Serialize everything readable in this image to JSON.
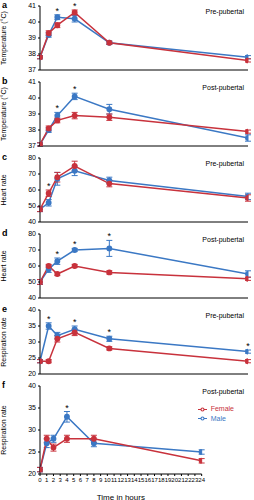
{
  "chart_data": [
    {
      "type": "line",
      "panel": "a",
      "title": "Pre-pubertal",
      "y_label": "Temperature (°C)",
      "x": [
        0,
        1,
        2,
        4,
        8,
        24
      ],
      "xlim": [
        0,
        24
      ],
      "xticks": [
        0,
        1,
        2,
        3,
        4,
        5,
        6,
        7,
        8,
        9,
        10,
        11,
        12,
        13,
        14,
        15,
        16,
        17,
        18,
        19,
        20,
        21,
        22,
        23,
        24
      ],
      "ylim": [
        37,
        41
      ],
      "yticks": [
        37,
        38,
        39,
        40,
        41
      ],
      "tick_labels": "y",
      "series": [
        {
          "name": "Male",
          "color": "#3b78c4",
          "marker": "circle",
          "values": [
            37.8,
            39.2,
            40.3,
            40.2,
            38.7,
            37.8
          ],
          "errors": [
            0.1,
            0.15,
            0.15,
            0.2,
            0.1,
            0.1
          ]
        },
        {
          "name": "Female",
          "color": "#c8323c",
          "marker": "circle",
          "values": [
            37.8,
            39.3,
            39.8,
            40.6,
            38.7,
            37.6
          ],
          "errors": [
            0.1,
            0.15,
            0.15,
            0.15,
            0.1,
            0.1
          ]
        }
      ],
      "annotations": [
        {
          "text": "*",
          "x": 2
        },
        {
          "text": "*",
          "x": 4
        }
      ]
    },
    {
      "type": "line",
      "panel": "b",
      "title": "Post-pubertal",
      "y_label": "Temperature (°C)",
      "x": [
        0,
        1,
        2,
        4,
        8,
        24
      ],
      "xlim": [
        0,
        24
      ],
      "xticks": [
        0,
        1,
        2,
        3,
        4,
        5,
        6,
        7,
        8,
        9,
        10,
        11,
        12,
        13,
        14,
        15,
        16,
        17,
        18,
        19,
        20,
        21,
        22,
        23,
        24
      ],
      "ylim": [
        37,
        41
      ],
      "yticks": [
        37,
        38,
        39,
        40,
        41
      ],
      "tick_labels": "y",
      "series": [
        {
          "name": "Male",
          "color": "#3b78c4",
          "marker": "circle",
          "values": [
            37.1,
            38.0,
            38.9,
            40.1,
            39.3,
            37.5
          ],
          "errors": [
            0.1,
            0.15,
            0.2,
            0.2,
            0.3,
            0.2
          ]
        },
        {
          "name": "Female",
          "color": "#c8323c",
          "marker": "circle",
          "values": [
            37.1,
            38.1,
            38.6,
            38.9,
            38.8,
            37.9
          ],
          "errors": [
            0.1,
            0.15,
            0.15,
            0.2,
            0.2,
            0.1
          ]
        }
      ],
      "annotations": [
        {
          "text": "*",
          "x": 2
        },
        {
          "text": "*",
          "x": 4
        }
      ]
    },
    {
      "type": "line",
      "panel": "c",
      "title": "Pre-pubertal",
      "y_label": "Heart rate",
      "x": [
        0,
        1,
        2,
        4,
        8,
        24
      ],
      "xlim": [
        0,
        24
      ],
      "xticks": [
        0,
        1,
        2,
        3,
        4,
        5,
        6,
        7,
        8,
        9,
        10,
        11,
        12,
        13,
        14,
        15,
        16,
        17,
        18,
        19,
        20,
        21,
        22,
        23,
        24
      ],
      "ylim": [
        40,
        80
      ],
      "yticks": [
        40,
        50,
        60,
        70,
        80
      ],
      "tick_labels": "y",
      "series": [
        {
          "name": "Male",
          "color": "#3b78c4",
          "marker": "circle",
          "values": [
            48,
            52,
            67,
            72,
            66,
            56
          ],
          "errors": [
            1.5,
            2,
            4,
            3,
            2,
            2
          ]
        },
        {
          "name": "Female",
          "color": "#c8323c",
          "marker": "circle",
          "values": [
            48,
            58,
            68,
            75,
            64,
            55
          ],
          "errors": [
            1.5,
            2,
            3,
            3,
            2,
            2
          ]
        }
      ],
      "annotations": [
        {
          "text": "*",
          "x": 1
        }
      ]
    },
    {
      "type": "line",
      "panel": "d",
      "title": "Post-pubertal",
      "y_label": "Heart rate",
      "x": [
        0,
        1,
        2,
        4,
        8,
        24
      ],
      "xlim": [
        0,
        24
      ],
      "xticks": [
        0,
        1,
        2,
        3,
        4,
        5,
        6,
        7,
        8,
        9,
        10,
        11,
        12,
        13,
        14,
        15,
        16,
        17,
        18,
        19,
        20,
        21,
        22,
        23,
        24
      ],
      "ylim": [
        40,
        80
      ],
      "yticks": [
        40,
        50,
        60,
        70,
        80
      ],
      "tick_labels": "y",
      "series": [
        {
          "name": "Male",
          "color": "#3b78c4",
          "marker": "circle",
          "values": [
            50,
            58,
            63,
            70,
            71,
            55
          ],
          "errors": [
            1.5,
            2,
            2,
            1,
            5,
            2
          ]
        },
        {
          "name": "Female",
          "color": "#c8323c",
          "marker": "circle",
          "values": [
            50,
            60,
            55,
            60,
            56,
            52
          ],
          "errors": [
            1.5,
            1,
            1,
            1,
            1,
            1
          ]
        }
      ],
      "annotations": [
        {
          "text": "*",
          "x": 2
        },
        {
          "text": "*",
          "x": 4
        },
        {
          "text": "*",
          "x": 8
        }
      ]
    },
    {
      "type": "line",
      "panel": "e",
      "title": "Pre-pubertal",
      "y_label": "Respiration rate",
      "x": [
        0,
        1,
        2,
        4,
        8,
        24
      ],
      "xlim": [
        0,
        24
      ],
      "xticks": [
        0,
        1,
        2,
        3,
        4,
        5,
        6,
        7,
        8,
        9,
        10,
        11,
        12,
        13,
        14,
        15,
        16,
        17,
        18,
        19,
        20,
        21,
        22,
        23,
        24
      ],
      "ylim": [
        20,
        40
      ],
      "yticks": [
        20,
        25,
        30,
        35,
        40
      ],
      "tick_labels": "y",
      "series": [
        {
          "name": "Male",
          "color": "#3b78c4",
          "marker": "circle",
          "values": [
            24,
            35,
            32,
            34,
            31,
            27
          ],
          "errors": [
            0.5,
            1,
            1,
            1,
            0.8,
            0.5
          ]
        },
        {
          "name": "Female",
          "color": "#c8323c",
          "marker": "circle",
          "values": [
            24,
            24,
            31,
            33,
            28,
            24
          ],
          "errors": [
            0.5,
            0.5,
            1,
            1,
            0.5,
            0.5
          ]
        }
      ],
      "annotations": [
        {
          "text": "*",
          "x": 1
        },
        {
          "text": "*",
          "x": 4
        },
        {
          "text": "*",
          "x": 8
        },
        {
          "text": "*",
          "x": 24
        }
      ]
    },
    {
      "type": "line",
      "panel": "f",
      "title": "Post-pubertal",
      "y_label": "Respiration rate",
      "x_label": "Time in hours",
      "x": [
        0,
        1,
        2,
        4,
        8,
        24
      ],
      "xlim": [
        0,
        24
      ],
      "xticks": [
        0,
        1,
        2,
        3,
        4,
        5,
        6,
        7,
        8,
        9,
        10,
        11,
        12,
        13,
        14,
        15,
        16,
        17,
        18,
        19,
        20,
        21,
        22,
        23,
        24
      ],
      "ylim": [
        20,
        40
      ],
      "yticks": [
        20,
        25,
        30,
        35,
        40
      ],
      "legend": "right",
      "series": [
        {
          "name": "Male",
          "color": "#3b78c4",
          "marker": "circle",
          "values": [
            21,
            27,
            28,
            33,
            27,
            25
          ],
          "errors": [
            0.5,
            1,
            0.8,
            1.2,
            0.8,
            0.5
          ]
        },
        {
          "name": "Female",
          "color": "#c8323c",
          "marker": "circle",
          "values": [
            21,
            28,
            26,
            28,
            28,
            23
          ],
          "errors": [
            0.5,
            0.8,
            0.8,
            0.8,
            0.8,
            0.5
          ]
        }
      ],
      "annotations": [
        {
          "text": "*",
          "x": 4
        }
      ]
    }
  ]
}
